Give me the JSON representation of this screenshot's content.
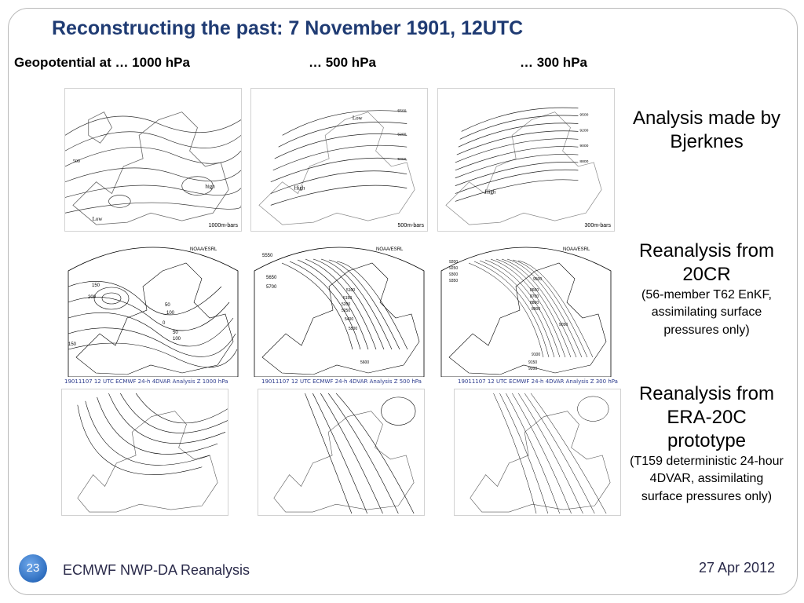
{
  "slide": {
    "title": "Reconstructing the past: 7 November 1901, 12UTC",
    "levels": [
      "Geopotential at … 1000 hPa",
      "… 500 hPa",
      "… 300 hPa"
    ],
    "bjerknes": {
      "label": "Analysis made by Bjerknes",
      "maps": [
        {
          "stamp": "1000m-bars",
          "words": [
            "Low",
            "high",
            "500"
          ]
        },
        {
          "stamp": "500m-bars",
          "words": [
            "High",
            "Low",
            "5500",
            "5200",
            "5000"
          ]
        },
        {
          "stamp": "300m-bars",
          "words": [
            "High",
            "9500",
            "9200",
            "9000",
            "8800"
          ]
        }
      ]
    },
    "cr20": {
      "title": "Reanalysis from 20CR",
      "detail": "(56-member T62 EnKF, assimilating surface pressures only)",
      "header": "NOAA/ESRL",
      "maps": [
        {
          "labels": [
            "150",
            "200",
            "100",
            "50",
            "0",
            "50",
            "100",
            "150"
          ]
        },
        {
          "labels": [
            "5550",
            "5650",
            "5700",
            "5100",
            "5150",
            "5200",
            "5250",
            "5400",
            "5500",
            "5600"
          ]
        },
        {
          "labels": [
            "9200",
            "9250",
            "9300",
            "9350",
            "9500",
            "8600",
            "8700",
            "8800",
            "8900",
            "9050",
            "9100",
            "9150",
            "9200"
          ]
        }
      ]
    },
    "era20c": {
      "title": "Reanalysis from ERA-20C prototype",
      "detail": "(T159 deterministic 24-hour 4DVAR, assimilating surface pressures only)",
      "captions": [
        "19011107 12 UTC ECMWF 24-h 4DVAR Analysis Z 1000 hPa",
        "19011107 12 UTC ECMWF 24-h 4DVAR Analysis Z 500 hPa",
        "19011107 12 UTC ECMWF 24-h 4DVAR Analysis Z 300 hPa"
      ]
    }
  },
  "footer": {
    "slide_number": "23",
    "text": "ECMWF NWP-DA Reanalysis",
    "date": "27 Apr 2012"
  },
  "colors": {
    "title": "#1f3b73",
    "badge": "#2f6fc0",
    "footer": "#2a2a4a"
  }
}
